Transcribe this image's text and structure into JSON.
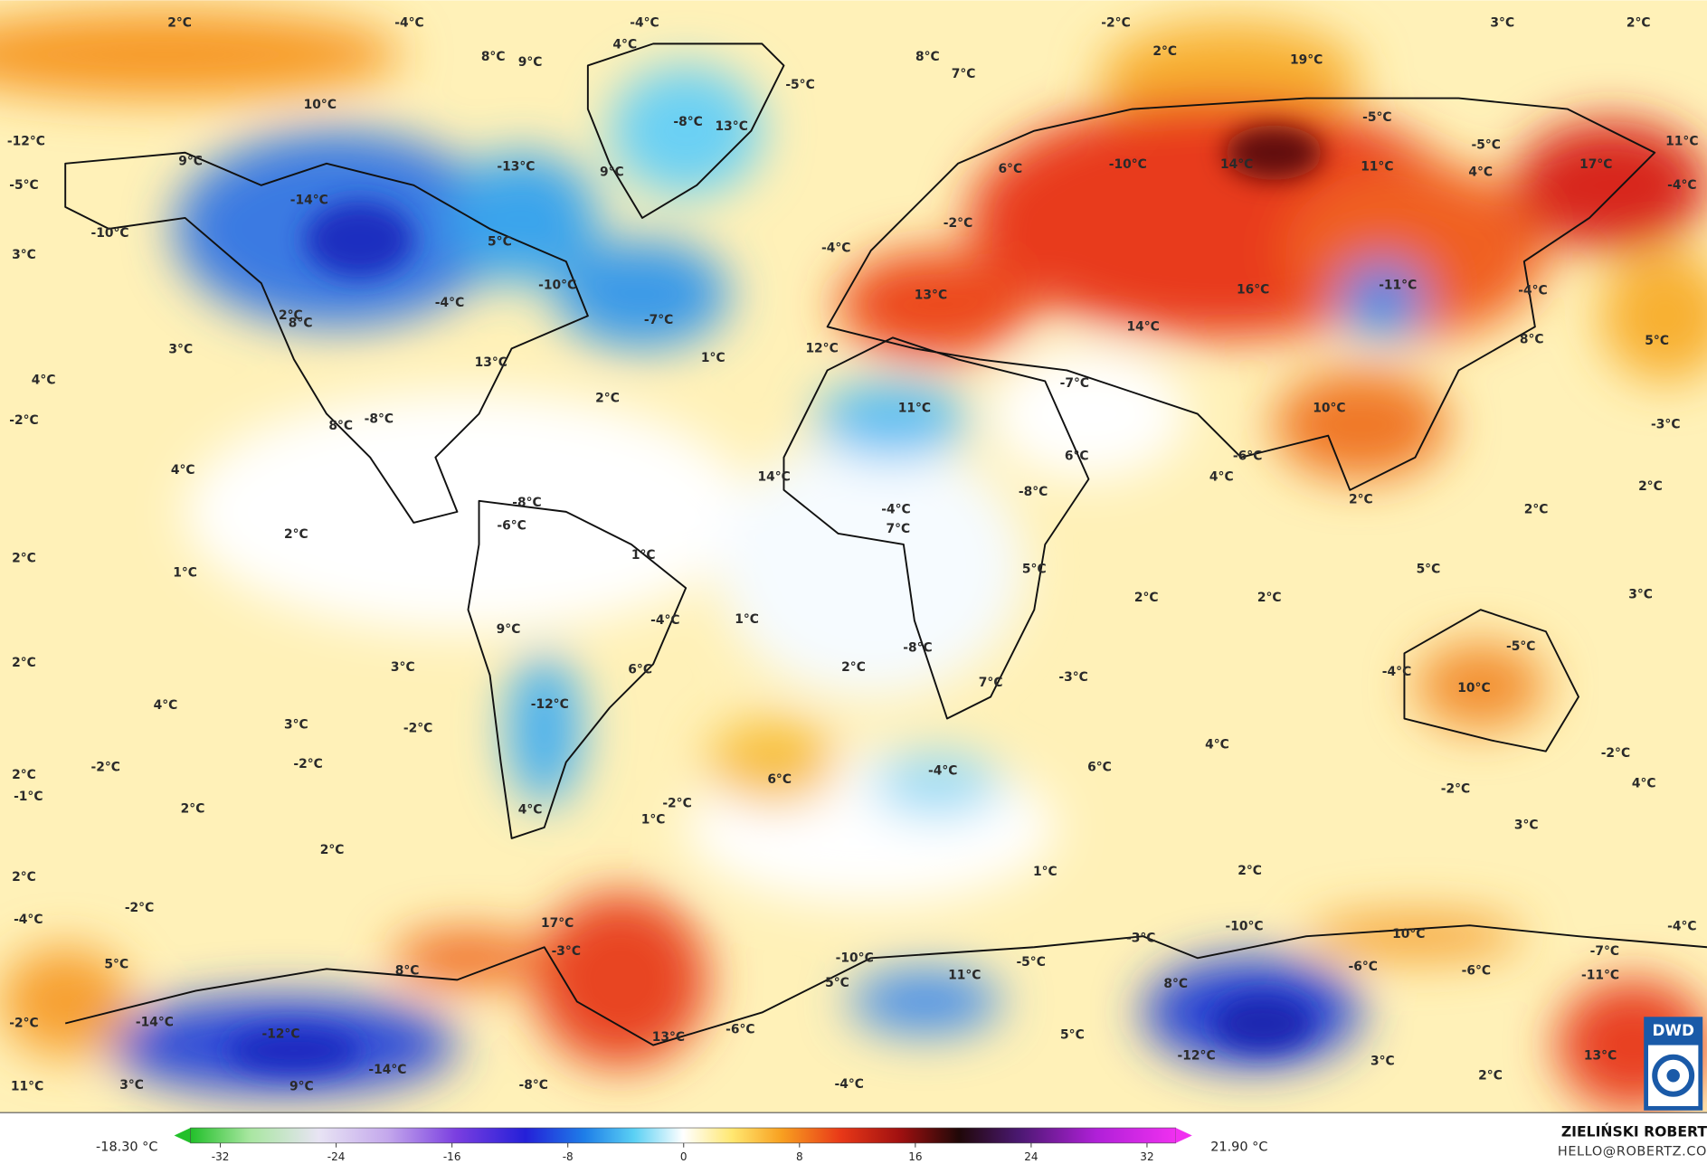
{
  "map": {
    "labels": [
      "2°C",
      "-4°C",
      "-4°C",
      "-2°C",
      "3°C",
      "2°C",
      "8°C",
      "9°C",
      "4°C",
      "8°C",
      "7°C",
      "2°C",
      "19°C",
      "10°C",
      "-5°C",
      "-8°C",
      "13°C",
      "-5°C",
      "-12°C",
      "9°C",
      "-13°C",
      "9°C",
      "6°C",
      "-10°C",
      "14°C",
      "11°C",
      "-5°C",
      "4°C",
      "17°C",
      "11°C",
      "-5°C",
      "-14°C",
      "-4°C",
      "-10°C",
      "-2°C",
      "5°C",
      "3°C",
      "-4°C",
      "-10°C",
      "13°C",
      "16°C",
      "-11°C",
      "-4°C",
      "-4°C",
      "2°C",
      "8°C",
      "-7°C",
      "14°C",
      "3°C",
      "12°C",
      "1°C",
      "8°C",
      "5°C",
      "13°C",
      "4°C",
      "-7°C",
      "2°C",
      "11°C",
      "10°C",
      "-2°C",
      "-8°C",
      "8°C",
      "-3°C",
      "6°C",
      "-6°C",
      "4°C",
      "14°C",
      "4°C",
      "2°C",
      "-8°C",
      "2°C",
      "-8°C",
      "-4°C",
      "-6°C",
      "2°C",
      "7°C",
      "2°C",
      "1°C",
      "2°C",
      "1°C",
      "5°C",
      "5°C",
      "2°C",
      "2°C",
      "3°C",
      "-4°C",
      "1°C",
      "9°C",
      "2°C",
      "3°C",
      "2°C",
      "6°C",
      "-8°C",
      "-5°C",
      "-4°C",
      "-3°C",
      "7°C",
      "10°C",
      "4°C",
      "-12°C",
      "3°C",
      "-2°C",
      "4°C",
      "-2°C",
      "-2°C",
      "-2°C",
      "-4°C",
      "6°C",
      "2°C",
      "6°C",
      "4°C",
      "-2°C",
      "-1°C",
      "-2°C",
      "4°C",
      "2°C",
      "1°C",
      "3°C",
      "2°C",
      "1°C",
      "2°C",
      "2°C",
      "-2°C",
      "-4°C",
      "17°C",
      "-10°C",
      "-4°C",
      "-3°C",
      "10°C",
      "-3°C",
      "-7°C",
      "5°C",
      "-10°C",
      "-5°C",
      "-6°C",
      "-6°C",
      "8°C",
      "11°C",
      "-11°C",
      "5°C",
      "8°C",
      "-2°C",
      "-14°C",
      "-6°C",
      "-12°C",
      "5°C",
      "13°C",
      "-12°C",
      "13°C",
      "3°C",
      "-14°C",
      "2°C",
      "11°C",
      "3°C",
      "9°C",
      "-8°C",
      "-4°C"
    ]
  },
  "colorbar": {
    "min_label": "-18.30 °C",
    "max_label": "21.90 °C",
    "ticks": [
      -32,
      -24,
      -16,
      -8,
      0,
      8,
      16,
      24,
      32
    ]
  },
  "credit": {
    "author": "ZIELIŃSKI ROBERT",
    "contact": "HELLO@ROBERTZ.CO"
  },
  "logo": "DWD"
}
